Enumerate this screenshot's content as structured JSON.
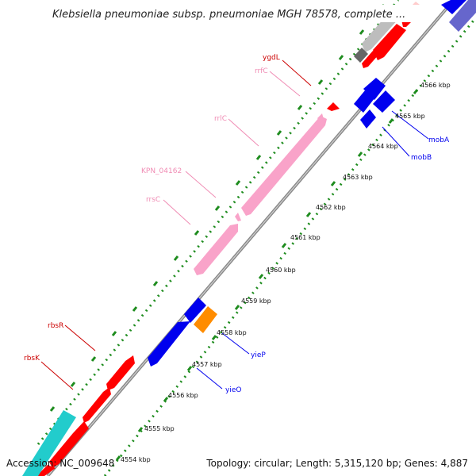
{
  "title": "Klebsiella pneumoniae subsp. pneumoniae MGH 78578, complete ...",
  "footer": {
    "accession": "Accession: NC_009648",
    "stats": "Topology: circular; Length: 5,315,120 bp; Genes: 4,887"
  },
  "colors": {
    "backbone": "#8a8a8a",
    "ticks": "#1e8c1e",
    "forward_gene": "#ff0000",
    "reverse_gene": "#0000ee",
    "rna": "#f9a3c9",
    "cyan_gene": "#22cccc",
    "orange_gene": "#ff8c00",
    "gray_gene": "#bdbdbd"
  },
  "tick_labels": [
    "4554 kbp",
    "4555 kbp",
    "4556 kbp",
    "4557 kbp",
    "4558 kbp",
    "4559 kbp",
    "4560 kbp",
    "4561 kbp",
    "4562 kbp",
    "4563 kbp",
    "4564 kbp",
    "4565 kbp",
    "4566 kbp"
  ],
  "gene_labels": {
    "ygdL": "ygdL",
    "rrfC": "rrfC",
    "rrlC": "rrlC",
    "KPN_04162": "KPN_04162",
    "rrsC": "rrsC",
    "rbsR": "rbsR",
    "rbsK": "rbsK",
    "mobA": "mobA",
    "mobB": "mobB",
    "yieP": "yieP",
    "yieO": "yieO"
  }
}
